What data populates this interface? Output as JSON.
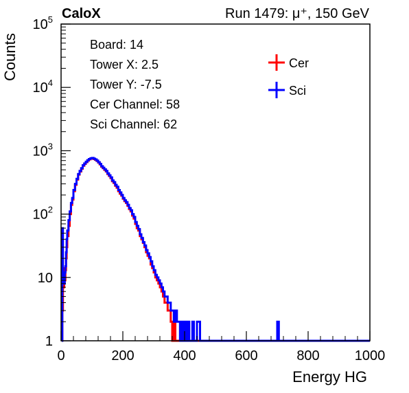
{
  "chart_data": {
    "type": "line",
    "title_left": "CaloX",
    "title_right": "Run 1479:   μ⁺, 150 GeV",
    "xlabel": "Energy HG",
    "ylabel": "Counts",
    "xlim": [
      0,
      1000
    ],
    "ylim": [
      1,
      100000
    ],
    "yscale": "log",
    "grid": false,
    "x_ticks": [
      0,
      200,
      400,
      600,
      800,
      1000
    ],
    "y_ticks": [
      {
        "value": 1,
        "base": "1",
        "exp": ""
      },
      {
        "value": 10,
        "base": "10",
        "exp": ""
      },
      {
        "value": 100,
        "base": "10",
        "exp": "2"
      },
      {
        "value": 1000,
        "base": "10",
        "exp": "3"
      },
      {
        "value": 10000,
        "base": "10",
        "exp": "4"
      },
      {
        "value": 100000,
        "base": "10",
        "exp": "5"
      }
    ],
    "info_box": [
      "Board: 14",
      "Tower X: 2.5",
      "Tower Y: -7.5",
      "Cer Channel: 58",
      "Sci Channel: 62"
    ],
    "legend_position": "top-right",
    "series": [
      {
        "name": "Cer",
        "color": "#ff0000",
        "points": [
          [
            2,
            1
          ],
          [
            4,
            3
          ],
          [
            6,
            12
          ],
          [
            8,
            7
          ],
          [
            10,
            14
          ],
          [
            12,
            9
          ],
          [
            14,
            13
          ],
          [
            16,
            20
          ],
          [
            18,
            30
          ],
          [
            20,
            45
          ],
          [
            24,
            65
          ],
          [
            28,
            100
          ],
          [
            32,
            140
          ],
          [
            36,
            170
          ],
          [
            40,
            230
          ],
          [
            45,
            290
          ],
          [
            50,
            350
          ],
          [
            55,
            420
          ],
          [
            60,
            470
          ],
          [
            65,
            520
          ],
          [
            70,
            580
          ],
          [
            75,
            620
          ],
          [
            80,
            660
          ],
          [
            85,
            700
          ],
          [
            90,
            730
          ],
          [
            95,
            750
          ],
          [
            100,
            760
          ],
          [
            105,
            740
          ],
          [
            110,
            720
          ],
          [
            115,
            690
          ],
          [
            120,
            650
          ],
          [
            125,
            610
          ],
          [
            130,
            560
          ],
          [
            135,
            530
          ],
          [
            140,
            500
          ],
          [
            145,
            470
          ],
          [
            150,
            430
          ],
          [
            155,
            400
          ],
          [
            160,
            370
          ],
          [
            165,
            330
          ],
          [
            170,
            310
          ],
          [
            175,
            280
          ],
          [
            180,
            260
          ],
          [
            185,
            230
          ],
          [
            190,
            210
          ],
          [
            195,
            195
          ],
          [
            200,
            175
          ],
          [
            205,
            160
          ],
          [
            210,
            150
          ],
          [
            215,
            135
          ],
          [
            220,
            120
          ],
          [
            225,
            110
          ],
          [
            230,
            95
          ],
          [
            235,
            85
          ],
          [
            240,
            70
          ],
          [
            245,
            60
          ],
          [
            250,
            55
          ],
          [
            255,
            45
          ],
          [
            260,
            40
          ],
          [
            265,
            35
          ],
          [
            270,
            30
          ],
          [
            275,
            25
          ],
          [
            280,
            22
          ],
          [
            285,
            20
          ],
          [
            290,
            16
          ],
          [
            295,
            14
          ],
          [
            300,
            12
          ],
          [
            305,
            10
          ],
          [
            310,
            9
          ],
          [
            315,
            8
          ],
          [
            320,
            7
          ],
          [
            325,
            6
          ],
          [
            330,
            5
          ],
          [
            335,
            4
          ],
          [
            340,
            4
          ],
          [
            345,
            3
          ],
          [
            350,
            3
          ],
          [
            355,
            2
          ],
          [
            360,
            1
          ],
          [
            365,
            2
          ],
          [
            370,
            1
          ],
          [
            380,
            1
          ],
          [
            390,
            1
          ],
          [
            400,
            1
          ],
          [
            420,
            1
          ],
          [
            450,
            1
          ],
          [
            500,
            1
          ],
          [
            540,
            1
          ],
          [
            800,
            1
          ],
          [
            1000,
            1
          ]
        ]
      },
      {
        "name": "Sci",
        "color": "#0000ff",
        "points": [
          [
            2,
            1
          ],
          [
            4,
            60
          ],
          [
            6,
            8
          ],
          [
            8,
            12
          ],
          [
            10,
            8
          ],
          [
            12,
            12
          ],
          [
            14,
            15
          ],
          [
            16,
            25
          ],
          [
            18,
            40
          ],
          [
            20,
            55
          ],
          [
            24,
            80
          ],
          [
            28,
            110
          ],
          [
            32,
            150
          ],
          [
            36,
            180
          ],
          [
            40,
            240
          ],
          [
            45,
            300
          ],
          [
            50,
            360
          ],
          [
            55,
            430
          ],
          [
            60,
            480
          ],
          [
            65,
            530
          ],
          [
            70,
            590
          ],
          [
            75,
            630
          ],
          [
            80,
            670
          ],
          [
            85,
            710
          ],
          [
            90,
            740
          ],
          [
            95,
            760
          ],
          [
            100,
            770
          ],
          [
            105,
            750
          ],
          [
            110,
            730
          ],
          [
            115,
            700
          ],
          [
            120,
            660
          ],
          [
            125,
            620
          ],
          [
            130,
            570
          ],
          [
            135,
            540
          ],
          [
            140,
            510
          ],
          [
            145,
            480
          ],
          [
            150,
            440
          ],
          [
            155,
            410
          ],
          [
            160,
            380
          ],
          [
            165,
            340
          ],
          [
            170,
            320
          ],
          [
            175,
            290
          ],
          [
            180,
            270
          ],
          [
            185,
            240
          ],
          [
            190,
            220
          ],
          [
            195,
            200
          ],
          [
            200,
            180
          ],
          [
            205,
            165
          ],
          [
            210,
            155
          ],
          [
            215,
            140
          ],
          [
            220,
            125
          ],
          [
            225,
            115
          ],
          [
            230,
            100
          ],
          [
            235,
            90
          ],
          [
            240,
            75
          ],
          [
            245,
            65
          ],
          [
            250,
            58
          ],
          [
            255,
            48
          ],
          [
            260,
            42
          ],
          [
            265,
            36
          ],
          [
            270,
            32
          ],
          [
            275,
            27
          ],
          [
            280,
            24
          ],
          [
            285,
            21
          ],
          [
            290,
            18
          ],
          [
            295,
            15
          ],
          [
            300,
            13
          ],
          [
            305,
            11
          ],
          [
            310,
            10
          ],
          [
            315,
            9
          ],
          [
            320,
            8
          ],
          [
            325,
            7
          ],
          [
            330,
            6
          ],
          [
            335,
            5
          ],
          [
            340,
            5
          ],
          [
            345,
            4
          ],
          [
            350,
            4
          ],
          [
            355,
            3
          ],
          [
            360,
            3
          ],
          [
            365,
            2
          ],
          [
            370,
            3
          ],
          [
            375,
            2
          ],
          [
            380,
            2
          ],
          [
            385,
            1
          ],
          [
            390,
            2
          ],
          [
            395,
            1
          ],
          [
            400,
            2
          ],
          [
            405,
            1
          ],
          [
            410,
            2
          ],
          [
            415,
            1
          ],
          [
            420,
            1
          ],
          [
            425,
            2
          ],
          [
            430,
            1
          ],
          [
            440,
            2
          ],
          [
            450,
            1
          ],
          [
            470,
            1
          ],
          [
            500,
            1
          ],
          [
            560,
            1
          ],
          [
            600,
            1
          ],
          [
            700,
            2
          ],
          [
            705,
            1
          ],
          [
            780,
            1
          ],
          [
            870,
            1
          ],
          [
            1000,
            1
          ]
        ]
      }
    ]
  }
}
